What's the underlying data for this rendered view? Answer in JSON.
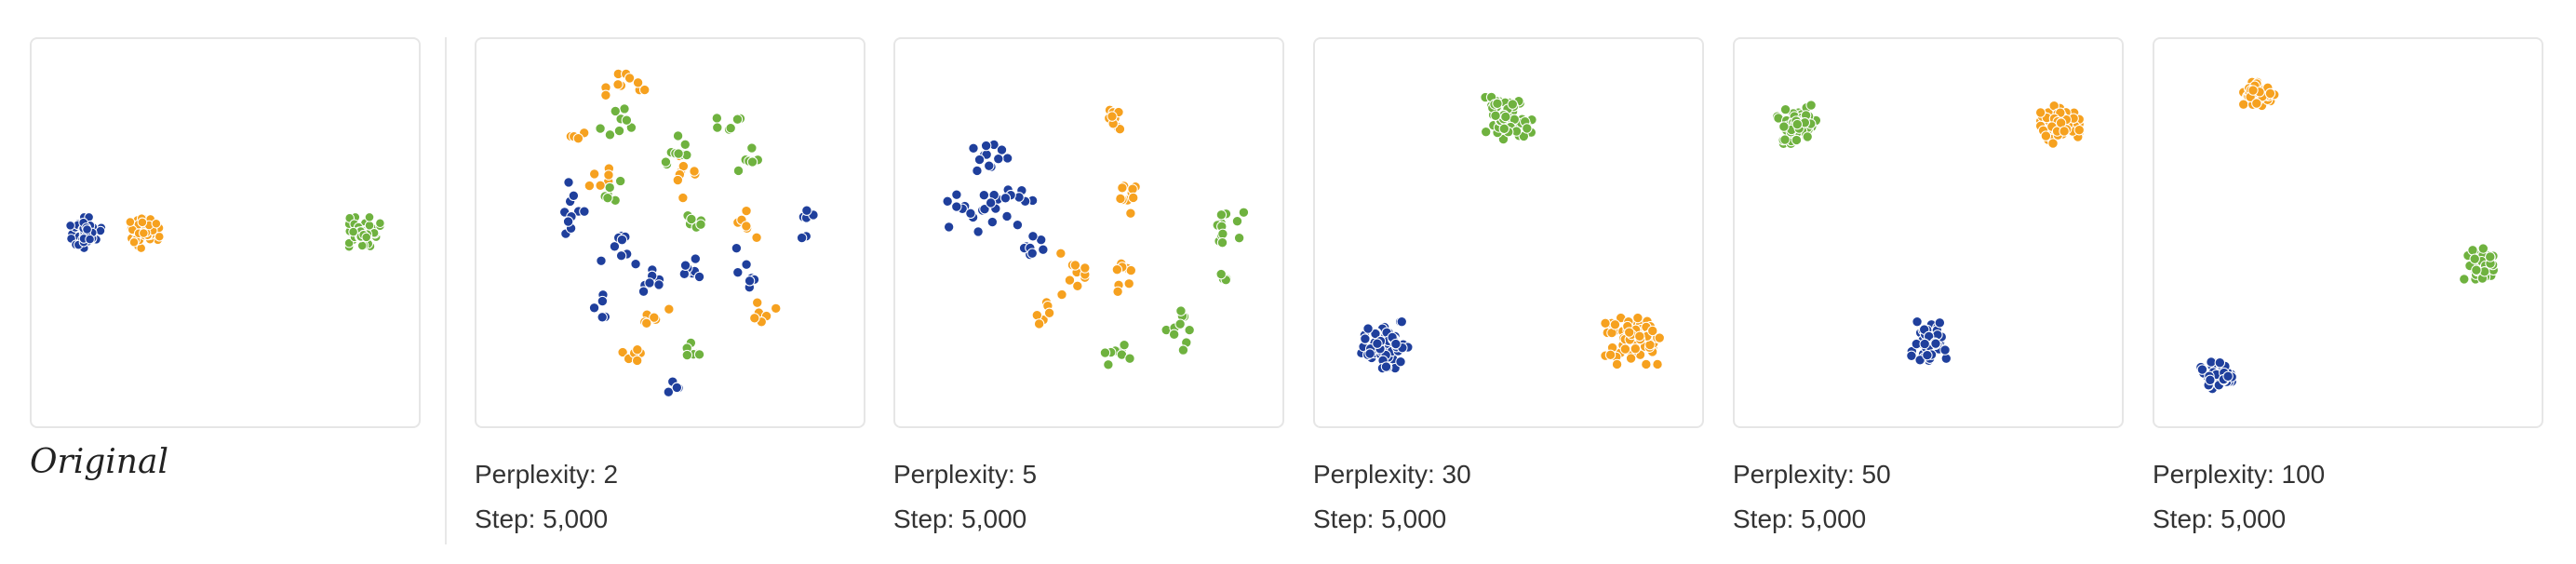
{
  "colors": {
    "blue": "#1f3f9c",
    "orange": "#f6a11f",
    "green": "#6fb23f"
  },
  "original_label": "Original",
  "runs": [
    {
      "perplexity_text": "Perplexity: 2",
      "step_text": "Step: 5,000"
    },
    {
      "perplexity_text": "Perplexity: 5",
      "step_text": "Step: 5,000"
    },
    {
      "perplexity_text": "Perplexity: 30",
      "step_text": "Step: 5,000"
    },
    {
      "perplexity_text": "Perplexity: 50",
      "step_text": "Step: 5,000"
    },
    {
      "perplexity_text": "Perplexity: 100",
      "step_text": "Step: 5,000"
    }
  ],
  "chart_data": [
    {
      "type": "scatter",
      "title": "Original",
      "xlim": [
        0,
        100
      ],
      "ylim": [
        0,
        100
      ],
      "series": [
        {
          "color": "blue",
          "clusters": [
            {
              "center": [
                14,
                50
              ],
              "spread": [
                4,
                4
              ],
              "count": 50
            }
          ]
        },
        {
          "color": "orange",
          "clusters": [
            {
              "center": [
                29,
                50
              ],
              "spread": [
                4,
                4
              ],
              "count": 50
            }
          ]
        },
        {
          "color": "green",
          "clusters": [
            {
              "center": [
                86,
                50
              ],
              "spread": [
                4,
                4
              ],
              "count": 50
            }
          ]
        }
      ]
    },
    {
      "type": "scatter",
      "title": "Perplexity: 2",
      "xlim": [
        0,
        100
      ],
      "ylim": [
        0,
        100
      ],
      "series": [
        {
          "color": "blue",
          "clusters": [
            {
              "center": [
                25,
                45
              ],
              "spread": [
                4,
                8
              ],
              "count": 10
            },
            {
              "center": [
                35,
                55
              ],
              "spread": [
                4,
                6
              ],
              "count": 8
            },
            {
              "center": [
                45,
                62
              ],
              "spread": [
                4,
                5
              ],
              "count": 8
            },
            {
              "center": [
                55,
                58
              ],
              "spread": [
                5,
                4
              ],
              "count": 8
            },
            {
              "center": [
                70,
                60
              ],
              "spread": [
                3,
                6
              ],
              "count": 8
            },
            {
              "center": [
                85,
                48
              ],
              "spread": [
                3,
                5
              ],
              "count": 6
            },
            {
              "center": [
                33,
                70
              ],
              "spread": [
                3,
                4
              ],
              "count": 6
            },
            {
              "center": [
                50,
                90
              ],
              "spread": [
                3,
                2
              ],
              "count": 4
            }
          ]
        },
        {
          "color": "orange",
          "clusters": [
            {
              "center": [
                40,
                12
              ],
              "spread": [
                8,
                3
              ],
              "count": 10
            },
            {
              "center": [
                26,
                25
              ],
              "spread": [
                3,
                3
              ],
              "count": 4
            },
            {
              "center": [
                30,
                35
              ],
              "spread": [
                6,
                3
              ],
              "count": 6
            },
            {
              "center": [
                55,
                35
              ],
              "spread": [
                3,
                6
              ],
              "count": 8
            },
            {
              "center": [
                70,
                48
              ],
              "spread": [
                4,
                4
              ],
              "count": 6
            },
            {
              "center": [
                45,
                72
              ],
              "spread": [
                5,
                3
              ],
              "count": 6
            },
            {
              "center": [
                40,
                82
              ],
              "spread": [
                4,
                3
              ],
              "count": 6
            },
            {
              "center": [
                75,
                70
              ],
              "spread": [
                4,
                4
              ],
              "count": 6
            }
          ]
        },
        {
          "color": "green",
          "clusters": [
            {
              "center": [
                35,
                22
              ],
              "spread": [
                5,
                4
              ],
              "count": 8
            },
            {
              "center": [
                50,
                28
              ],
              "spread": [
                5,
                5
              ],
              "count": 10
            },
            {
              "center": [
                65,
                22
              ],
              "spread": [
                4,
                4
              ],
              "count": 6
            },
            {
              "center": [
                70,
                30
              ],
              "spread": [
                4,
                4
              ],
              "count": 6
            },
            {
              "center": [
                35,
                40
              ],
              "spread": [
                4,
                4
              ],
              "count": 6
            },
            {
              "center": [
                55,
                48
              ],
              "spread": [
                4,
                4
              ],
              "count": 6
            },
            {
              "center": [
                55,
                80
              ],
              "spread": [
                5,
                3
              ],
              "count": 6
            }
          ]
        }
      ]
    },
    {
      "type": "scatter",
      "title": "Perplexity: 5",
      "xlim": [
        0,
        100
      ],
      "ylim": [
        0,
        100
      ],
      "series": [
        {
          "color": "blue",
          "clusters": [
            {
              "center": [
                24,
                30
              ],
              "spread": [
                5,
                4
              ],
              "count": 12
            },
            {
              "center": [
                18,
                45
              ],
              "spread": [
                6,
                5
              ],
              "count": 12
            },
            {
              "center": [
                30,
                42
              ],
              "spread": [
                6,
                6
              ],
              "count": 14
            },
            {
              "center": [
                35,
                52
              ],
              "spread": [
                5,
                4
              ],
              "count": 8
            }
          ]
        },
        {
          "color": "orange",
          "clusters": [
            {
              "center": [
                57,
                20
              ],
              "spread": [
                2,
                6
              ],
              "count": 10
            },
            {
              "center": [
                60,
                40
              ],
              "spread": [
                3,
                5
              ],
              "count": 10
            },
            {
              "center": [
                45,
                60
              ],
              "spread": [
                4,
                6
              ],
              "count": 10
            },
            {
              "center": [
                58,
                62
              ],
              "spread": [
                5,
                4
              ],
              "count": 8
            },
            {
              "center": [
                38,
                72
              ],
              "spread": [
                3,
                4
              ],
              "count": 6
            }
          ]
        },
        {
          "color": "green",
          "clusters": [
            {
              "center": [
                85,
                50
              ],
              "spread": [
                5,
                6
              ],
              "count": 12
            },
            {
              "center": [
                73,
                75
              ],
              "spread": [
                3,
                7
              ],
              "count": 10
            },
            {
              "center": [
                58,
                82
              ],
              "spread": [
                5,
                3
              ],
              "count": 8
            },
            {
              "center": [
                85,
                62
              ],
              "spread": [
                3,
                3
              ],
              "count": 4
            }
          ]
        }
      ]
    },
    {
      "type": "scatter",
      "title": "Perplexity: 30",
      "xlim": [
        0,
        100
      ],
      "ylim": [
        0,
        100
      ],
      "series": [
        {
          "color": "blue",
          "clusters": [
            {
              "center": [
                18,
                79
              ],
              "spread": [
                6,
                6
              ],
              "count": 70
            }
          ]
        },
        {
          "color": "orange",
          "clusters": [
            {
              "center": [
                82,
                78
              ],
              "spread": [
                7,
                6
              ],
              "count": 70
            }
          ]
        },
        {
          "color": "green",
          "clusters": [
            {
              "center": [
                50,
                21
              ],
              "spread": [
                6,
                6
              ],
              "count": 70
            }
          ]
        }
      ]
    },
    {
      "type": "scatter",
      "title": "Perplexity: 50",
      "xlim": [
        0,
        100
      ],
      "ylim": [
        0,
        100
      ],
      "series": [
        {
          "color": "blue",
          "clusters": [
            {
              "center": [
                50,
                78
              ],
              "spread": [
                5,
                5
              ],
              "count": 60
            }
          ]
        },
        {
          "color": "orange",
          "clusters": [
            {
              "center": [
                84,
                22
              ],
              "spread": [
                5,
                5
              ],
              "count": 60
            }
          ]
        },
        {
          "color": "green",
          "clusters": [
            {
              "center": [
                16,
                22
              ],
              "spread": [
                5,
                5
              ],
              "count": 60
            }
          ]
        }
      ]
    },
    {
      "type": "scatter",
      "title": "Perplexity: 100",
      "xlim": [
        0,
        100
      ],
      "ylim": [
        0,
        100
      ],
      "series": [
        {
          "color": "blue",
          "clusters": [
            {
              "center": [
                16,
                87
              ],
              "spread": [
                4,
                4
              ],
              "count": 45
            }
          ]
        },
        {
          "color": "orange",
          "clusters": [
            {
              "center": [
                27,
                14
              ],
              "spread": [
                4,
                4
              ],
              "count": 45
            }
          ]
        },
        {
          "color": "green",
          "clusters": [
            {
              "center": [
                84,
                58
              ],
              "spread": [
                4,
                4
              ],
              "count": 45
            }
          ]
        }
      ]
    }
  ]
}
